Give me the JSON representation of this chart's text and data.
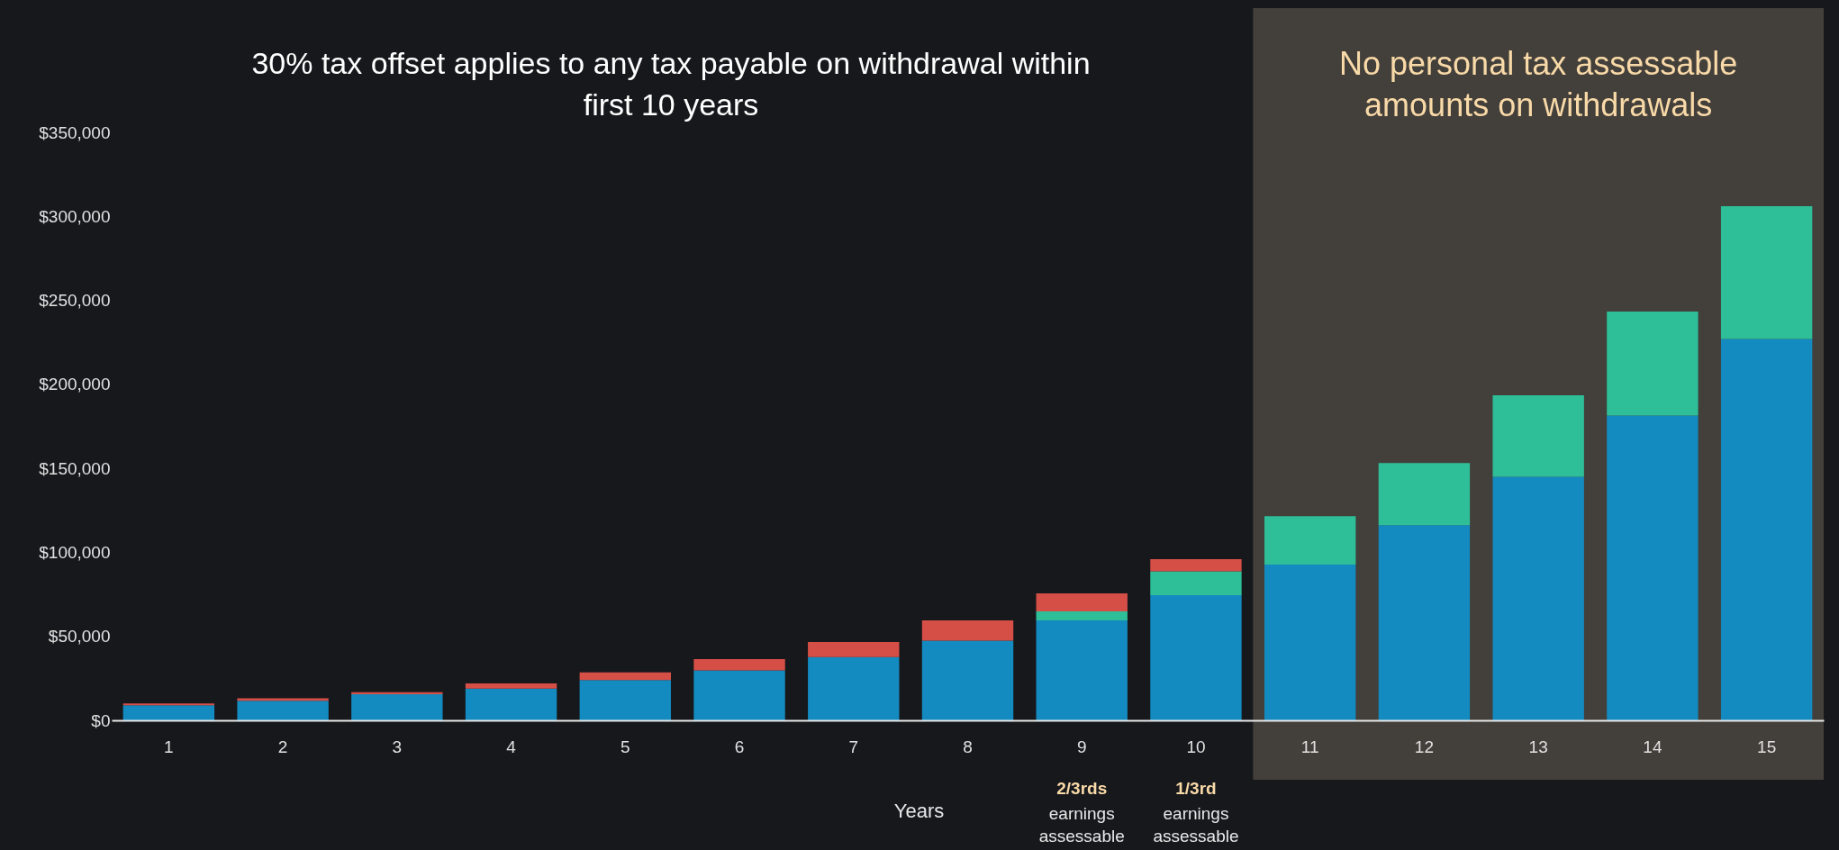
{
  "chart_data": {
    "type": "bar",
    "stacked": true,
    "title": "30% tax offset applies to any tax payable on withdrawal within first 10 years",
    "xlabel": "Years",
    "categories": [
      "1",
      "2",
      "3",
      "4",
      "5",
      "6",
      "7",
      "8",
      "9",
      "10",
      "11",
      "12",
      "13",
      "14",
      "15"
    ],
    "series": [
      {
        "color": "#148bc0",
        "values": [
          9000,
          11700,
          15500,
          18900,
          24000,
          29800,
          37700,
          47400,
          59500,
          74500,
          92700,
          116200,
          145000,
          181400,
          227000
        ]
      },
      {
        "color": "#2ebf99",
        "values": [
          null,
          null,
          null,
          null,
          null,
          null,
          null,
          null,
          5400,
          14200,
          28800,
          37000,
          48500,
          62000,
          79100
        ]
      },
      {
        "color": "#d64f47",
        "values": [
          1000,
          1400,
          1300,
          3100,
          4500,
          6600,
          8900,
          12100,
          10700,
          7200,
          null,
          null,
          null,
          null,
          null
        ]
      }
    ],
    "ylim": [
      0,
      350000
    ],
    "yticks": [
      {
        "value": 0,
        "label": "$0"
      },
      {
        "value": 50000,
        "label": "$50,000"
      },
      {
        "value": 100000,
        "label": "$100,000"
      },
      {
        "value": 150000,
        "label": "$150,000"
      },
      {
        "value": 200000,
        "label": "$200,000"
      },
      {
        "value": 250000,
        "label": "$250,000"
      },
      {
        "value": 300000,
        "label": "$300,000"
      },
      {
        "value": 350000,
        "label": "$350,000"
      }
    ],
    "bands": [
      {
        "axis": "x",
        "from": "11",
        "to": "15",
        "label": "No personal tax assessable amounts on withdrawals",
        "color": "#433f3a"
      }
    ],
    "annotations": [
      "2/3rds earnings assessable",
      "1/3rd earnings assessable"
    ],
    "grid": false
  }
}
